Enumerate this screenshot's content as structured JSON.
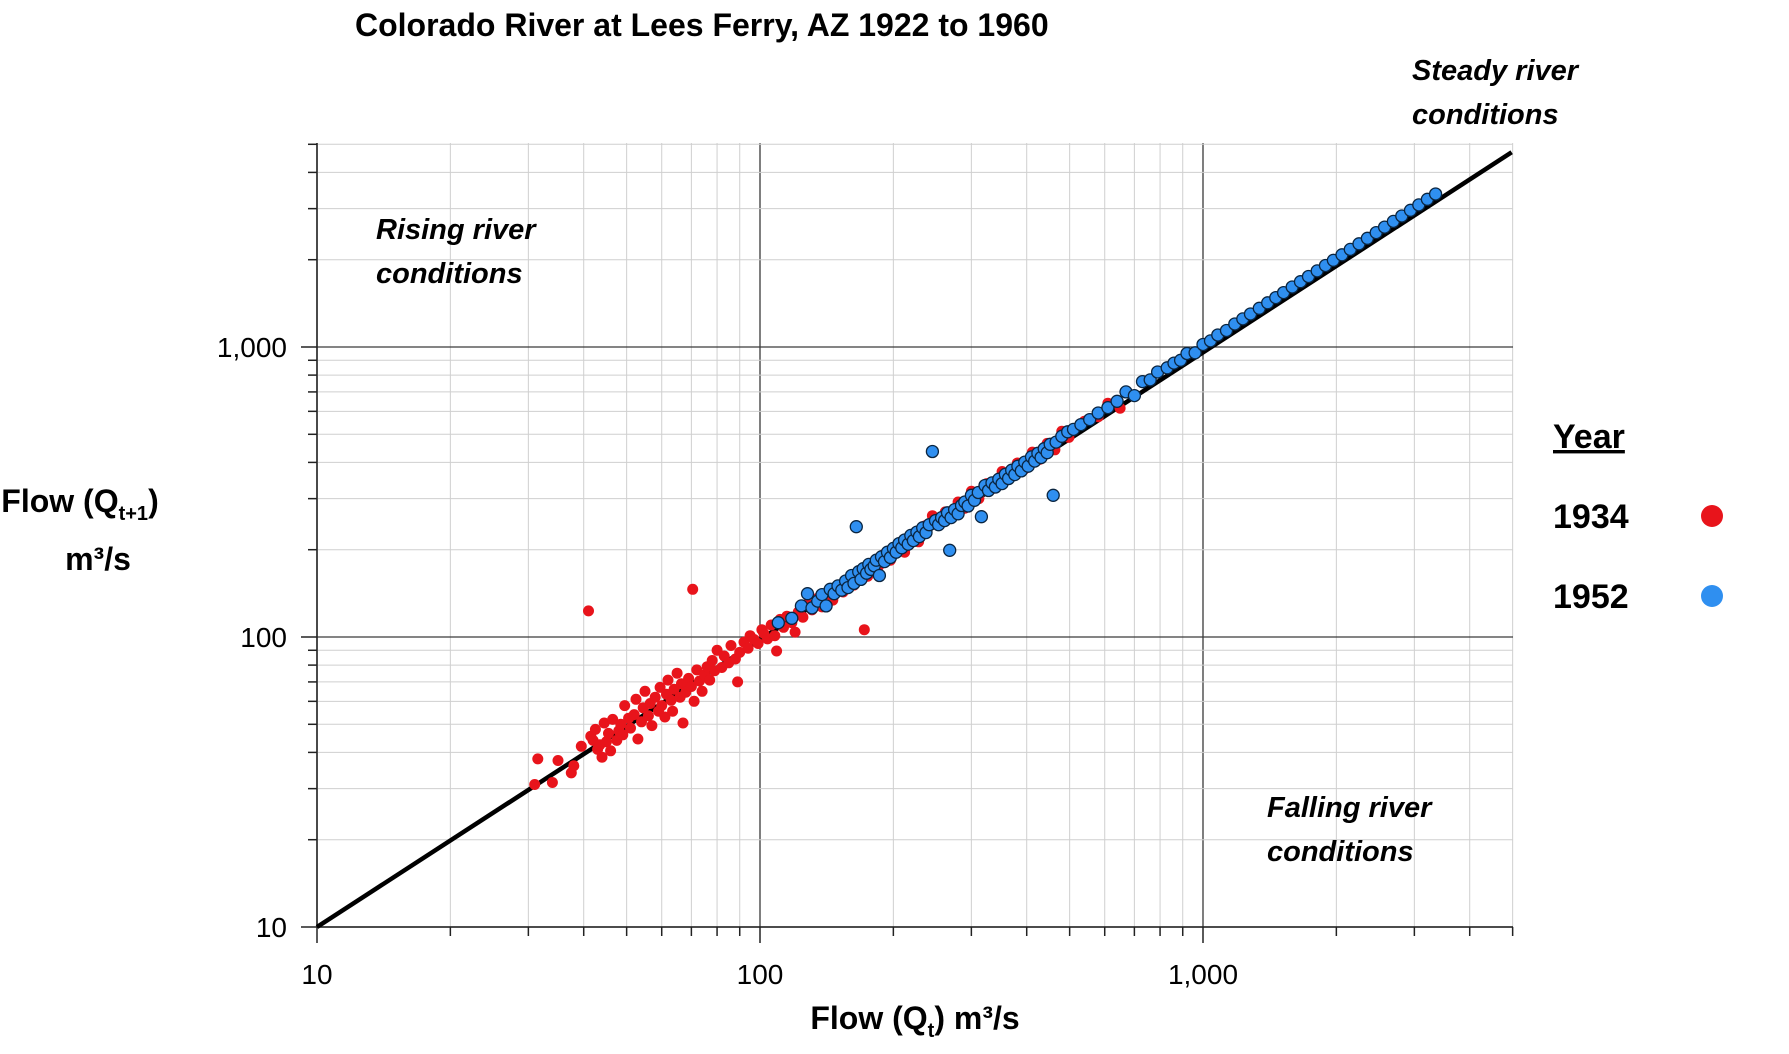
{
  "chart_data": {
    "type": "scatter",
    "title": "Colorado River at Lees Ferry, AZ 1922 to 1960",
    "xlabel": {
      "pre": "Flow (Q",
      "sub": "t",
      "post": ")  m³/s"
    },
    "ylabel": {
      "pre": "Flow (Q",
      "sub": "t+1",
      "post": ")",
      "line2": "m³/s"
    },
    "x_scale": "log",
    "y_scale": "log",
    "xlim": [
      10,
      5000
    ],
    "ylim": [
      10,
      5000
    ],
    "x_ticks": [
      {
        "value": 10,
        "label": "10"
      },
      {
        "value": 100,
        "label": "100"
      },
      {
        "value": 1000,
        "label": "1,000"
      }
    ],
    "y_ticks": [
      {
        "value": 10,
        "label": "10"
      },
      {
        "value": 100,
        "label": "100"
      },
      {
        "value": 1000,
        "label": "1,000"
      }
    ],
    "grid": true,
    "reference_line": {
      "from": [
        10,
        10
      ],
      "to": [
        5000,
        5000
      ]
    },
    "legend": {
      "title": "Year",
      "placement": "right",
      "entries": [
        {
          "label": "1934",
          "color": "#e8141b"
        },
        {
          "label": "1952",
          "color": "#2f8ff0"
        }
      ]
    },
    "annotations": [
      {
        "id": "steady",
        "lines": [
          "Steady river",
          "conditions"
        ]
      },
      {
        "id": "rising",
        "lines": [
          "Rising river",
          "conditions"
        ]
      },
      {
        "id": "falling",
        "lines": [
          "Falling river",
          "conditions"
        ]
      }
    ],
    "series": [
      {
        "name": "1934",
        "color": "#e8141b",
        "points": [
          [
            31,
            31
          ],
          [
            31.5,
            38
          ],
          [
            34,
            31.5
          ],
          [
            35,
            37.5
          ],
          [
            37.5,
            34
          ],
          [
            38,
            36
          ],
          [
            39.5,
            42
          ],
          [
            41,
            123
          ],
          [
            41.5,
            45.5
          ],
          [
            42,
            44
          ],
          [
            42.5,
            48
          ],
          [
            43,
            41
          ],
          [
            43.5,
            42.5
          ],
          [
            44,
            38.5
          ],
          [
            44.5,
            50.5
          ],
          [
            45,
            43.5
          ],
          [
            45.5,
            46.5
          ],
          [
            46,
            40.5
          ],
          [
            46.5,
            52
          ],
          [
            47.5,
            44
          ],
          [
            48,
            47.5
          ],
          [
            48.5,
            50
          ],
          [
            49,
            46
          ],
          [
            49.5,
            58
          ],
          [
            50.5,
            52.5
          ],
          [
            51,
            48.5
          ],
          [
            52,
            54
          ],
          [
            52.5,
            61
          ],
          [
            53,
            44.5
          ],
          [
            54,
            51
          ],
          [
            54.5,
            57
          ],
          [
            55,
            65
          ],
          [
            56,
            53.5
          ],
          [
            56.5,
            59
          ],
          [
            57,
            49.5
          ],
          [
            58,
            62
          ],
          [
            59,
            55.5
          ],
          [
            59.5,
            67
          ],
          [
            60,
            58
          ],
          [
            61,
            53
          ],
          [
            61.5,
            63.5
          ],
          [
            62,
            71
          ],
          [
            63,
            60.5
          ],
          [
            63.5,
            55.5
          ],
          [
            64,
            66
          ],
          [
            65,
            75
          ],
          [
            66,
            62
          ],
          [
            66.5,
            69
          ],
          [
            67,
            50.5
          ],
          [
            68,
            64.5
          ],
          [
            69,
            72
          ],
          [
            70,
            67.5
          ],
          [
            70.5,
            146
          ],
          [
            71,
            60
          ],
          [
            72,
            77
          ],
          [
            73,
            70.5
          ],
          [
            74,
            65
          ],
          [
            75,
            74
          ],
          [
            76,
            79
          ],
          [
            77,
            71
          ],
          [
            78,
            83
          ],
          [
            79,
            76.5
          ],
          [
            80,
            90
          ],
          [
            82,
            78.5
          ],
          [
            83,
            86
          ],
          [
            85,
            81.5
          ],
          [
            86,
            93.5
          ],
          [
            88,
            84
          ],
          [
            89,
            70
          ],
          [
            90,
            88.5
          ],
          [
            92,
            96
          ],
          [
            94,
            91.5
          ],
          [
            95,
            101
          ],
          [
            97,
            98
          ],
          [
            99,
            95
          ],
          [
            101,
            106
          ],
          [
            102,
            103
          ],
          [
            104,
            98.5
          ],
          [
            106,
            110
          ],
          [
            108,
            101
          ],
          [
            109,
            89.5
          ],
          [
            111,
            115
          ],
          [
            113,
            108
          ],
          [
            115,
            118
          ],
          [
            118,
            112
          ],
          [
            120,
            104
          ],
          [
            122,
            122
          ],
          [
            125,
            117
          ],
          [
            128,
            130
          ],
          [
            131,
            124
          ],
          [
            135,
            136
          ],
          [
            138,
            127
          ],
          [
            142,
            141
          ],
          [
            146,
            134
          ],
          [
            150,
            149
          ],
          [
            154,
            143
          ],
          [
            158,
            158
          ],
          [
            163,
            151
          ],
          [
            168,
            168
          ],
          [
            172,
            106
          ],
          [
            175,
            162
          ],
          [
            180,
            178
          ],
          [
            185,
            175
          ],
          [
            190,
            192
          ],
          [
            197,
            184
          ],
          [
            205,
            203
          ],
          [
            212,
            196
          ],
          [
            220,
            222
          ],
          [
            228,
            213
          ],
          [
            236,
            242
          ],
          [
            245,
            262
          ],
          [
            253,
            245
          ],
          [
            262,
            270
          ],
          [
            270,
            256
          ],
          [
            280,
            292
          ],
          [
            290,
            278
          ],
          [
            300,
            318
          ],
          [
            312,
            300
          ],
          [
            325,
            338
          ],
          [
            338,
            326
          ],
          [
            352,
            372
          ],
          [
            366,
            357
          ],
          [
            381,
            398
          ],
          [
            396,
            380
          ],
          [
            412,
            434
          ],
          [
            428,
            410
          ],
          [
            445,
            465
          ],
          [
            463,
            442
          ],
          [
            480,
            512
          ],
          [
            498,
            488
          ],
          [
            540,
            555
          ],
          [
            580,
            575
          ],
          [
            610,
            640
          ],
          [
            650,
            615
          ]
        ]
      },
      {
        "name": "1952",
        "color": "#2f8ff0",
        "points": [
          [
            110,
            112
          ],
          [
            118,
            116
          ],
          [
            124,
            128
          ],
          [
            128,
            141
          ],
          [
            131,
            126
          ],
          [
            135,
            133
          ],
          [
            138,
            140
          ],
          [
            141,
            128
          ],
          [
            144,
            146
          ],
          [
            147,
            141
          ],
          [
            150,
            150
          ],
          [
            153,
            145
          ],
          [
            156,
            156
          ],
          [
            158,
            148
          ],
          [
            161,
            163
          ],
          [
            163,
            153
          ],
          [
            165,
            240
          ],
          [
            167,
            168
          ],
          [
            169,
            158
          ],
          [
            171,
            172
          ],
          [
            174,
            166
          ],
          [
            176,
            178
          ],
          [
            178,
            171
          ],
          [
            181,
            176
          ],
          [
            183,
            184
          ],
          [
            186,
            163
          ],
          [
            188,
            189
          ],
          [
            191,
            182
          ],
          [
            194,
            196
          ],
          [
            197,
            188
          ],
          [
            200,
            202
          ],
          [
            203,
            196
          ],
          [
            206,
            210
          ],
          [
            209,
            203
          ],
          [
            212,
            216
          ],
          [
            216,
            209
          ],
          [
            219,
            224
          ],
          [
            222,
            215
          ],
          [
            226,
            230
          ],
          [
            229,
            222
          ],
          [
            233,
            238
          ],
          [
            237,
            229
          ],
          [
            241,
            244
          ],
          [
            245,
            436
          ],
          [
            249,
            252
          ],
          [
            253,
            244
          ],
          [
            257,
            258
          ],
          [
            261,
            252
          ],
          [
            265,
            268
          ],
          [
            268,
            199
          ],
          [
            270,
            258
          ],
          [
            275,
            275
          ],
          [
            280,
            266
          ],
          [
            285,
            284
          ],
          [
            290,
            292
          ],
          [
            295,
            283
          ],
          [
            300,
            308
          ],
          [
            305,
            296
          ],
          [
            311,
            315
          ],
          [
            316,
            260
          ],
          [
            322,
            333
          ],
          [
            328,
            320
          ],
          [
            334,
            340
          ],
          [
            340,
            329
          ],
          [
            346,
            350
          ],
          [
            352,
            338
          ],
          [
            358,
            364
          ],
          [
            364,
            352
          ],
          [
            370,
            376
          ],
          [
            376,
            363
          ],
          [
            382,
            388
          ],
          [
            389,
            374
          ],
          [
            396,
            401
          ],
          [
            403,
            388
          ],
          [
            410,
            418
          ],
          [
            417,
            404
          ],
          [
            424,
            430
          ],
          [
            431,
            416
          ],
          [
            438,
            446
          ],
          [
            445,
            432
          ],
          [
            452,
            462
          ],
          [
            459,
            308
          ],
          [
            466,
            470
          ],
          [
            480,
            492
          ],
          [
            495,
            510
          ],
          [
            510,
            520
          ],
          [
            530,
            540
          ],
          [
            555,
            562
          ],
          [
            580,
            592
          ],
          [
            610,
            618
          ],
          [
            640,
            650
          ],
          [
            670,
            700
          ],
          [
            700,
            680
          ],
          [
            730,
            760
          ],
          [
            760,
            770
          ],
          [
            790,
            820
          ],
          [
            830,
            848
          ],
          [
            860,
            880
          ],
          [
            890,
            900
          ],
          [
            920,
            950
          ],
          [
            960,
            955
          ],
          [
            1000,
            1020
          ],
          [
            1040,
            1050
          ],
          [
            1080,
            1100
          ],
          [
            1130,
            1140
          ],
          [
            1180,
            1200
          ],
          [
            1230,
            1250
          ],
          [
            1280,
            1300
          ],
          [
            1340,
            1360
          ],
          [
            1400,
            1420
          ],
          [
            1460,
            1480
          ],
          [
            1520,
            1540
          ],
          [
            1590,
            1610
          ],
          [
            1660,
            1680
          ],
          [
            1730,
            1750
          ],
          [
            1810,
            1830
          ],
          [
            1890,
            1910
          ],
          [
            1970,
            1990
          ],
          [
            2060,
            2080
          ],
          [
            2150,
            2170
          ],
          [
            2250,
            2270
          ],
          [
            2350,
            2370
          ],
          [
            2460,
            2480
          ],
          [
            2570,
            2590
          ],
          [
            2690,
            2710
          ],
          [
            2810,
            2830
          ],
          [
            2940,
            2960
          ],
          [
            3070,
            3090
          ],
          [
            3210,
            3230
          ],
          [
            3350,
            3370
          ]
        ]
      }
    ]
  }
}
